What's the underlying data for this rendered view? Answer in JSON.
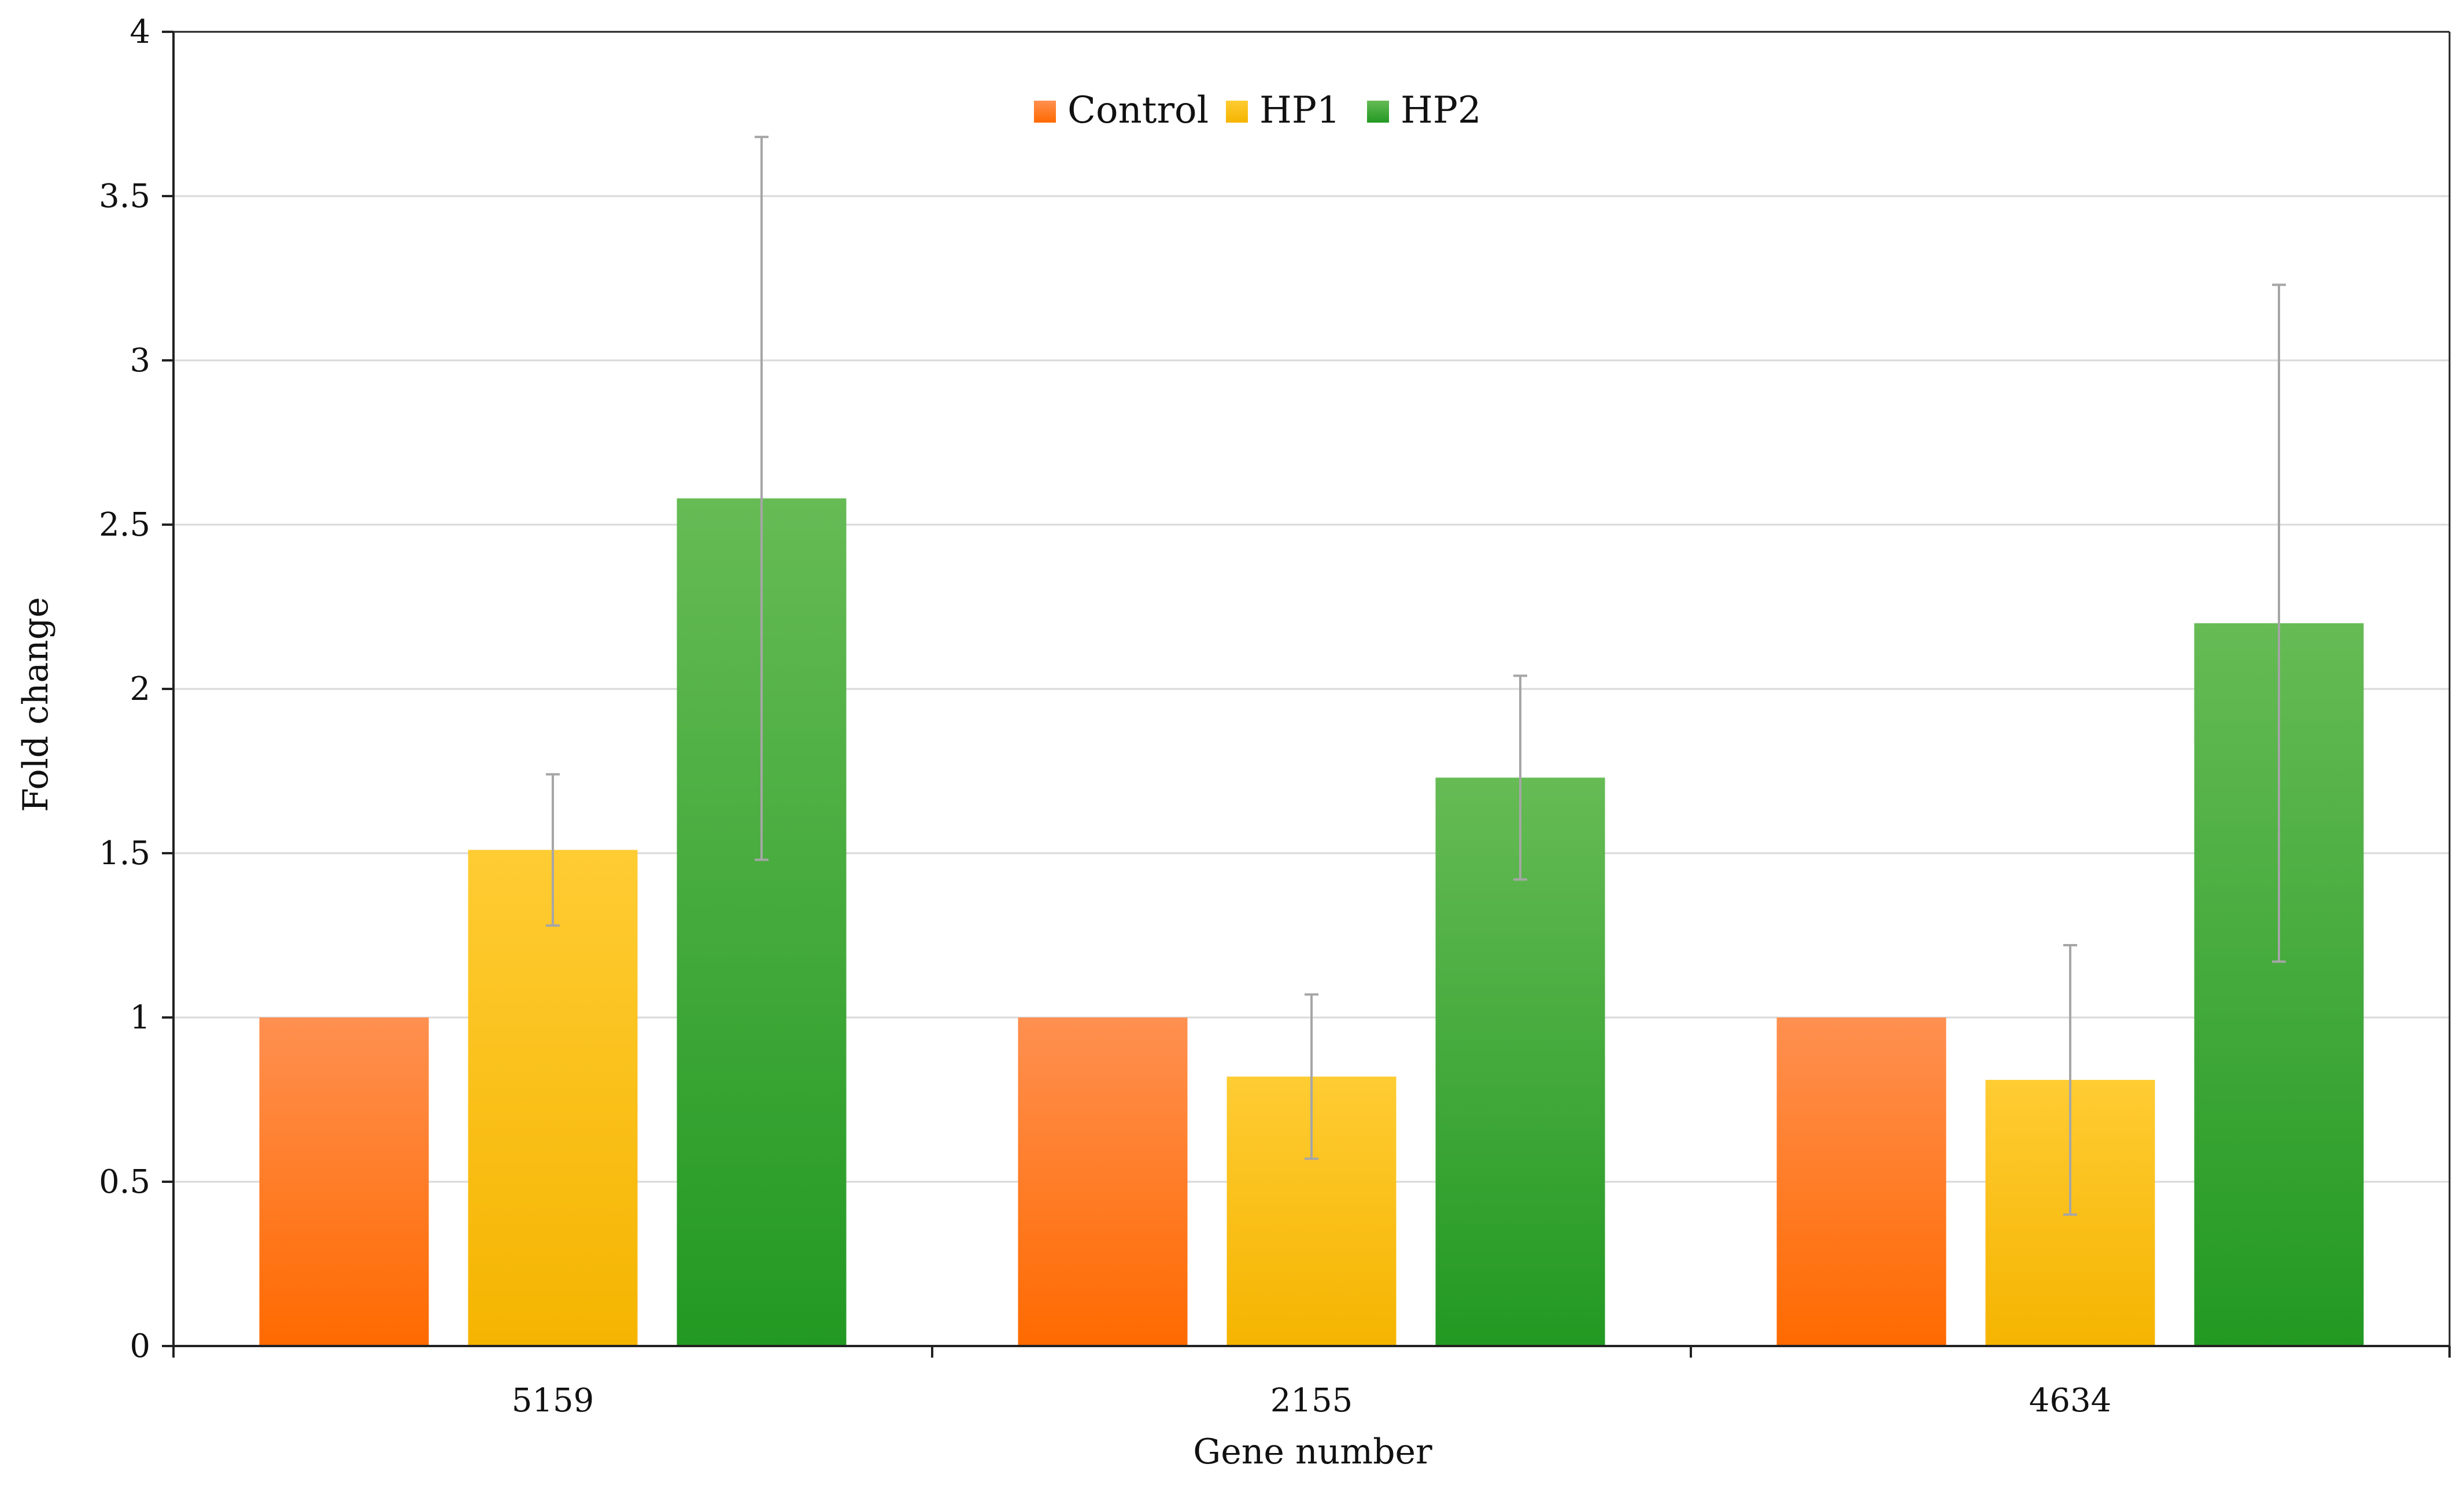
{
  "chart_data": {
    "type": "bar",
    "title": "",
    "xlabel": "Gene number",
    "ylabel": "Fold change",
    "categories": [
      "5159",
      "2155",
      "4634"
    ],
    "ylim": [
      0,
      4
    ],
    "yticks": [
      0,
      0.5,
      1,
      1.5,
      2,
      2.5,
      3,
      3.5,
      4
    ],
    "ytick_labels": [
      "0",
      "0.5",
      "1",
      "1.5",
      "2",
      "2.5",
      "3",
      "3.5",
      "4"
    ],
    "grid": true,
    "legend_position": "top-center",
    "series": [
      {
        "name": "Control",
        "values": [
          1.0,
          1.0,
          1.0
        ],
        "error": [
          0,
          0,
          0
        ],
        "color_top": "#ff9050",
        "color_bottom": "#ff6a00"
      },
      {
        "name": "HP1",
        "values": [
          1.51,
          0.82,
          0.81
        ],
        "error": [
          0.23,
          0.25,
          0.41
        ],
        "color_top": "#ffcc33",
        "color_bottom": "#f5b400"
      },
      {
        "name": "HP2",
        "values": [
          2.58,
          1.73,
          2.2
        ],
        "error": [
          1.1,
          0.31,
          1.03
        ],
        "color_top": "#66bb55",
        "color_bottom": "#229922"
      }
    ]
  }
}
